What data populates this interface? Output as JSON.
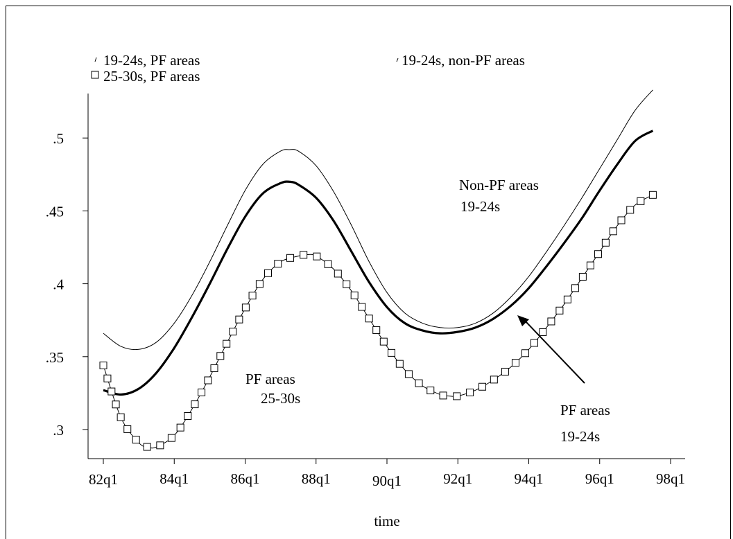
{
  "chart_data": {
    "type": "line",
    "xlabel": "time",
    "ylabel": "",
    "x_ticks": [
      "82q1",
      "84q1",
      "86q1",
      "88q1",
      "90q1",
      "92q1",
      "94q1",
      "96q1",
      "98q1"
    ],
    "y_ticks": [
      ".3",
      ".35",
      ".4",
      ".45",
      ".5"
    ],
    "ylim": [
      0.28,
      0.535
    ],
    "xlim": [
      82.0,
      98.0
    ],
    "legend_position": "top",
    "legend": [
      {
        "label": "19-24s, PF areas"
      },
      {
        "label": "19-24s, non-PF areas"
      },
      {
        "label": "25-30s, PF areas"
      }
    ],
    "annotations": [
      {
        "line1": "Non-PF areas",
        "line2": "19-24s"
      },
      {
        "line1": "PF areas",
        "line2": "25-30s"
      },
      {
        "line1": "PF areas",
        "line2": "19-24s"
      }
    ],
    "series": [
      {
        "name": "19-24s, non-PF areas",
        "style": "thin",
        "x": [
          82.0,
          82.5,
          83.0,
          83.5,
          84.0,
          84.5,
          85.0,
          85.5,
          86.0,
          86.5,
          87.0,
          87.25,
          87.5,
          88.0,
          88.5,
          89.0,
          89.5,
          90.0,
          90.5,
          91.0,
          91.5,
          92.0,
          92.5,
          93.0,
          93.5,
          94.0,
          94.5,
          95.0,
          95.5,
          96.0,
          96.5,
          97.0,
          97.5
        ],
        "y": [
          0.366,
          0.357,
          0.355,
          0.36,
          0.373,
          0.392,
          0.415,
          0.44,
          0.464,
          0.482,
          0.491,
          0.492,
          0.491,
          0.481,
          0.463,
          0.44,
          0.415,
          0.394,
          0.38,
          0.373,
          0.37,
          0.37,
          0.373,
          0.38,
          0.391,
          0.405,
          0.422,
          0.44,
          0.459,
          0.479,
          0.499,
          0.519,
          0.533
        ]
      },
      {
        "name": "19-24s, PF areas",
        "style": "thick",
        "x": [
          82.0,
          82.5,
          83.0,
          83.5,
          84.0,
          84.5,
          85.0,
          85.5,
          86.0,
          86.5,
          87.0,
          87.25,
          87.5,
          88.0,
          88.5,
          89.0,
          89.5,
          90.0,
          90.5,
          91.0,
          91.5,
          92.0,
          92.5,
          93.0,
          93.5,
          94.0,
          94.5,
          95.0,
          95.5,
          96.0,
          96.5,
          97.0,
          97.5
        ],
        "y": [
          0.327,
          0.324,
          0.328,
          0.339,
          0.356,
          0.377,
          0.4,
          0.424,
          0.446,
          0.462,
          0.469,
          0.47,
          0.468,
          0.459,
          0.443,
          0.422,
          0.401,
          0.384,
          0.373,
          0.368,
          0.366,
          0.367,
          0.37,
          0.376,
          0.385,
          0.397,
          0.412,
          0.428,
          0.445,
          0.464,
          0.482,
          0.498,
          0.505
        ]
      },
      {
        "name": "25-30s, PF areas",
        "style": "thin-square-markers",
        "x": [
          82.0,
          82.5,
          83.0,
          83.25,
          83.5,
          84.0,
          84.5,
          85.0,
          85.5,
          86.0,
          86.5,
          87.0,
          87.5,
          87.75,
          88.0,
          88.5,
          89.0,
          89.5,
          90.0,
          90.5,
          91.0,
          91.5,
          91.75,
          92.0,
          92.5,
          93.0,
          93.5,
          94.0,
          94.5,
          95.0,
          95.5,
          96.0,
          96.5,
          97.0,
          97.5
        ],
        "y": [
          0.344,
          0.308,
          0.291,
          0.288,
          0.288,
          0.296,
          0.314,
          0.336,
          0.36,
          0.383,
          0.403,
          0.415,
          0.419,
          0.42,
          0.419,
          0.41,
          0.395,
          0.376,
          0.357,
          0.341,
          0.33,
          0.324,
          0.323,
          0.323,
          0.327,
          0.334,
          0.343,
          0.355,
          0.37,
          0.386,
          0.404,
          0.422,
          0.44,
          0.454,
          0.461
        ]
      }
    ]
  }
}
